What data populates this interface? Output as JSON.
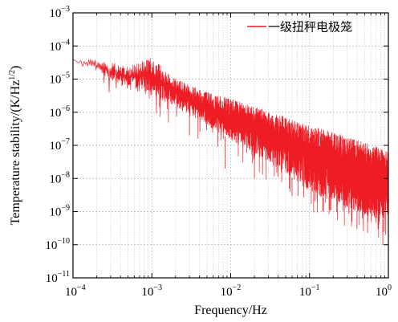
{
  "chart_data": {
    "type": "line",
    "xlabel": "Frequency/Hz",
    "ylabel": "Temperature stability/(K/Hz",
    "ylabel_sup": "1/2",
    "ylabel_close": ")",
    "xscale": "log",
    "yscale": "log",
    "xlim": [
      0.0001,
      1
    ],
    "ylim": [
      1e-11,
      0.001
    ],
    "x_ticks": [
      {
        "base": "10",
        "exp": "−4"
      },
      {
        "base": "10",
        "exp": "−3"
      },
      {
        "base": "10",
        "exp": "−2"
      },
      {
        "base": "10",
        "exp": "−1"
      },
      {
        "base": "10",
        "exp": "0"
      }
    ],
    "y_ticks": [
      {
        "base": "10",
        "exp": "−11"
      },
      {
        "base": "10",
        "exp": "−10"
      },
      {
        "base": "10",
        "exp": "−9"
      },
      {
        "base": "10",
        "exp": "−8"
      },
      {
        "base": "10",
        "exp": "−7"
      },
      {
        "base": "10",
        "exp": "−6"
      },
      {
        "base": "10",
        "exp": "−5"
      },
      {
        "base": "10",
        "exp": "−4"
      },
      {
        "base": "10",
        "exp": "−3"
      }
    ],
    "grid": true,
    "legend_position": "top-right",
    "series": [
      {
        "name": "一级扭秤电极笼",
        "color": "#ee1c25",
        "envelope": {
          "x": [
            0.0001,
            0.0002,
            0.0005,
            0.001,
            0.002,
            0.005,
            0.01,
            0.02,
            0.05,
            0.1,
            0.2,
            0.5,
            1
          ],
          "upper": [
            4.5e-05,
            4e-05,
            2.5e-05,
            4.5e-05,
            1e-05,
            4e-06,
            2.5e-06,
            1.5e-06,
            7e-07,
            4e-07,
            2.5e-07,
            1.2e-07,
            7e-08
          ],
          "lower": [
            3e-05,
            1.5e-05,
            5e-06,
            3e-06,
            1.5e-06,
            4e-07,
            1.5e-07,
            5e-08,
            1.5e-08,
            4e-09,
            2e-09,
            8e-10,
            5e-10
          ],
          "min_spikes": [
            {
              "x": 0.003,
              "y": 2e-07
            },
            {
              "x": 0.0085,
              "y": 2e-08
            },
            {
              "x": 0.02,
              "y": 1e-08
            },
            {
              "x": 0.06,
              "y": 3e-09
            },
            {
              "x": 0.15,
              "y": 1e-09
            },
            {
              "x": 0.4,
              "y": 3e-10
            },
            {
              "x": 0.85,
              "y": 1e-10
            }
          ]
        }
      }
    ]
  }
}
